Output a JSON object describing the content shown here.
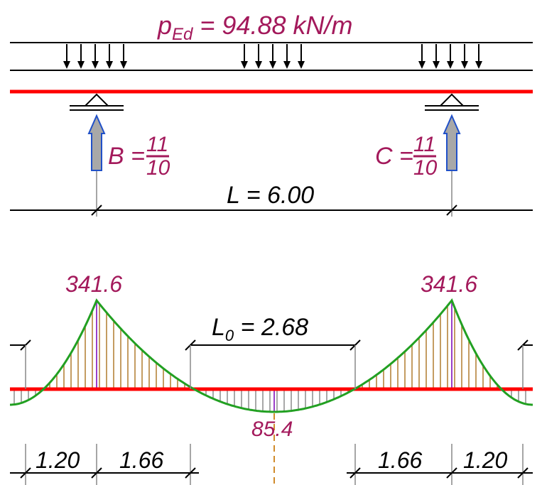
{
  "load": {
    "symbol": "p",
    "subscript": "Ed",
    "value_text": " = 94.88 kN/m"
  },
  "supports": {
    "B": {
      "symbol": "B =",
      "numerator": "11",
      "denominator": "10"
    },
    "C": {
      "symbol": "C =",
      "numerator": "11",
      "denominator": "10"
    }
  },
  "span": {
    "text": "L = 6.00"
  },
  "moments": {
    "support_left": "341.6",
    "support_right": "341.6",
    "midspan": "85.4"
  },
  "zero_length": {
    "symbol": "L",
    "subscript": "0",
    "value_text": " = 2.68"
  },
  "dimensions": {
    "left_outer": "1.20",
    "left_inner": "1.66",
    "right_inner": "1.66",
    "right_outer": "1.20"
  },
  "colors": {
    "beam": "#ff0000",
    "moment_curve": "#22a022",
    "hogging_hatch": "#b07a2e",
    "sagging_hatch": "#8a8a8a",
    "reaction_arrow_fill": "#a8a8a8",
    "reaction_arrow_stroke": "#2050c8",
    "label": "#a3195b",
    "support_line": "#9a3fc8"
  }
}
